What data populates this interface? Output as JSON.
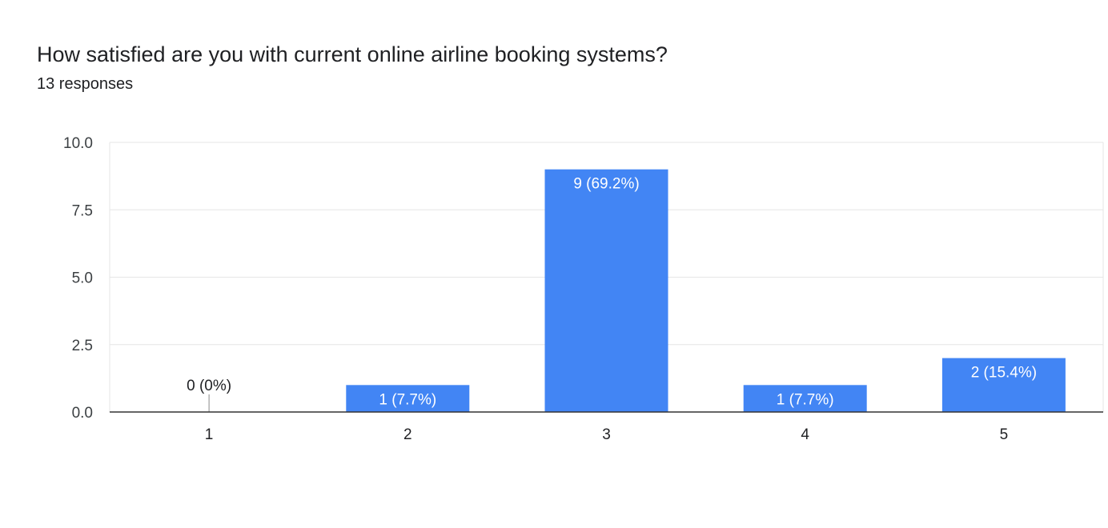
{
  "chart_data": {
    "type": "bar",
    "title": "How satisfied are you with current online airline booking systems?",
    "subtitle": "13 responses",
    "categories": [
      "1",
      "2",
      "3",
      "4",
      "5"
    ],
    "values": [
      0,
      1,
      9,
      1,
      2
    ],
    "data_labels": [
      "0 (0%)",
      "1 (7.7%)",
      "9 (69.2%)",
      "1 (7.7%)",
      "2 (15.4%)"
    ],
    "ylim": [
      0,
      10
    ],
    "yticks": [
      "0.0",
      "2.5",
      "5.0",
      "7.5",
      "10.0"
    ],
    "ytick_values": [
      0,
      2.5,
      5,
      7.5,
      10
    ],
    "grid": true,
    "bar_color": "#4285f4"
  }
}
